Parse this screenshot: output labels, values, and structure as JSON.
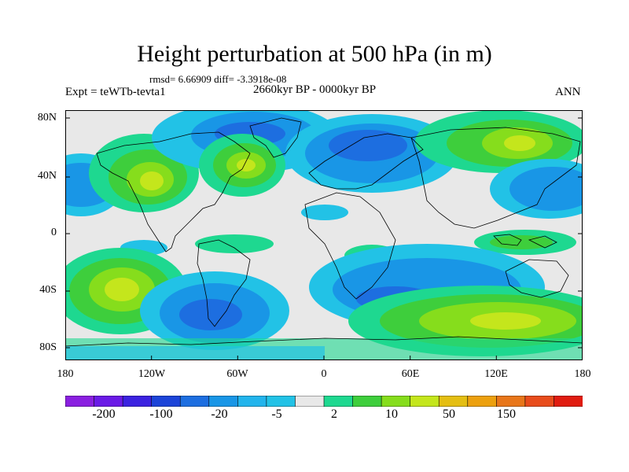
{
  "title": "Height perturbation at 500 hPa (in m)",
  "stats": "rmsd= 6.66909 diff= -3.3918e-08",
  "experiment": "Expt = teWTb-tevta1",
  "period": "2660kyr BP - 0000kyr BP",
  "season": "ANN",
  "lat_ticks": [
    "80N",
    "40N",
    "0",
    "40S",
    "80S"
  ],
  "lon_ticks": [
    "180",
    "120W",
    "60W",
    "0",
    "60E",
    "120E",
    "180"
  ],
  "colorbar": {
    "labels": [
      "-200",
      "-100",
      "-20",
      "-5",
      "2",
      "10",
      "50",
      "150"
    ],
    "colors": [
      "#8a1fe0",
      "#6a1ae6",
      "#3b22e0",
      "#1c44d8",
      "#1d6ee0",
      "#1996e6",
      "#22b4ec",
      "#22c2e6",
      "#e8e8e8",
      "#1ed890",
      "#3ece3c",
      "#86dd1c",
      "#c4e61c",
      "#e4be12",
      "#eca00e",
      "#e8761a",
      "#e84c1c",
      "#e01c10"
    ]
  },
  "icons": [
    "map-contour-field",
    "coastline"
  ]
}
